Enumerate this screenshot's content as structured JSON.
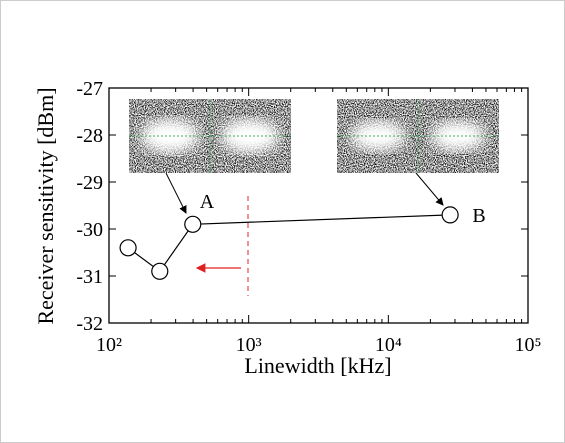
{
  "chart_data": {
    "type": "line",
    "x_label": "Linewidth [kHz]",
    "y_label": "Receiver sensitivity [dBm]",
    "x_scale": "log",
    "x": [
      137,
      231,
      398,
      27700
    ],
    "series": [
      {
        "color": "#000000",
        "values": [
          -30.4,
          -30.9,
          -29.9,
          -29.7
        ]
      }
    ],
    "xlim": [
      100,
      100000
    ],
    "xticks": [
      {
        "value": 100,
        "label": "10²"
      },
      {
        "value": 1000,
        "label": "10³"
      },
      {
        "value": 10000,
        "label": "10⁴"
      },
      {
        "value": 100000,
        "label": "10⁵"
      }
    ],
    "ylim": [
      -32,
      -27
    ],
    "yticks": [
      -32,
      -31,
      -30,
      -29,
      -28,
      -27
    ],
    "annotations": [
      "A",
      "B"
    ]
  }
}
